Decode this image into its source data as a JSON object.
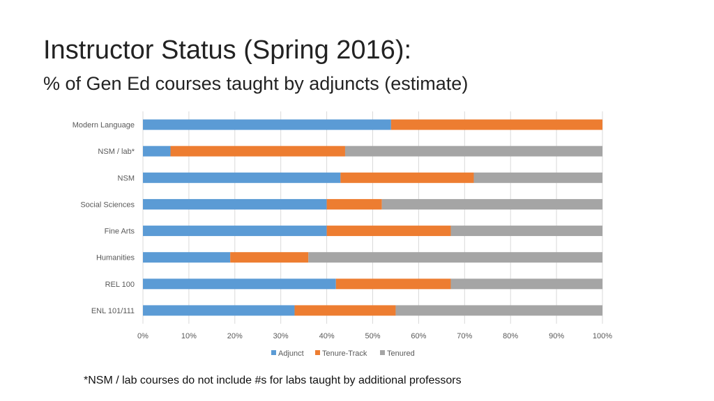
{
  "slide": {
    "title": "Instructor Status (Spring 2016):",
    "subtitle": "% of Gen Ed courses taught by adjuncts (estimate)",
    "footnote": "*NSM / lab courses do not include #s for labs taught by additional professors"
  },
  "chart_data": {
    "type": "bar",
    "orientation": "horizontal",
    "stacked": true,
    "categories": [
      "Modern Language",
      "NSM / lab*",
      "NSM",
      "Social Sciences",
      "Fine Arts",
      "Humanities",
      "REL 100",
      "ENL 101/111"
    ],
    "series": [
      {
        "name": "Adjunct",
        "color": "#5B9BD5",
        "values": [
          54,
          6,
          43,
          40,
          40,
          19,
          42,
          33
        ]
      },
      {
        "name": "Tenure-Track",
        "color": "#ED7D31",
        "values": [
          46,
          38,
          29,
          12,
          27,
          17,
          25,
          22
        ]
      },
      {
        "name": "Tenured",
        "color": "#A5A5A5",
        "values": [
          0,
          56,
          28,
          48,
          33,
          64,
          33,
          45
        ]
      }
    ],
    "xlim": [
      0,
      100
    ],
    "x_ticks": [
      "0%",
      "10%",
      "20%",
      "30%",
      "40%",
      "50%",
      "60%",
      "70%",
      "80%",
      "90%",
      "100%"
    ],
    "grid": true,
    "legend_position": "bottom"
  }
}
